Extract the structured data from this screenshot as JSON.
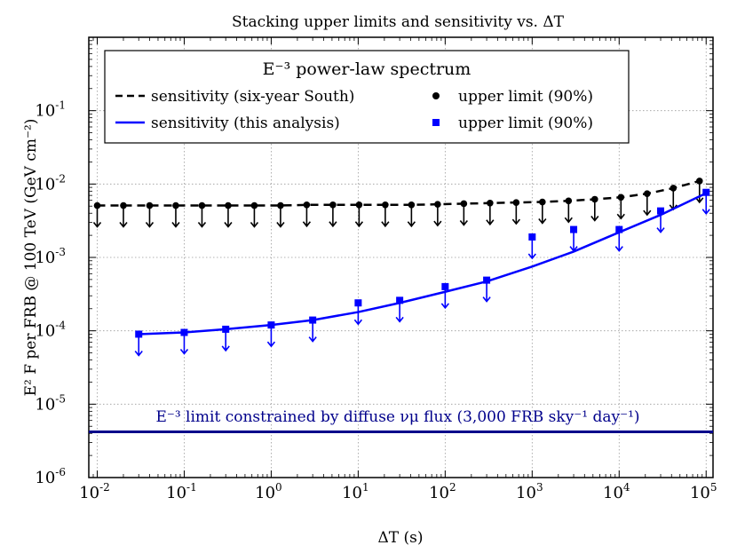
{
  "chart_data": {
    "type": "scatter",
    "title": "Stacking upper limits and sensitivity vs. ΔT",
    "xlabel": "ΔT (s)",
    "ylabel": "E² F per FRB @ 100 TeV (GeV cm⁻²)",
    "xscale": "log",
    "yscale": "log",
    "xlim": [
      0.008,
      120000
    ],
    "ylim": [
      1e-06,
      1.0
    ],
    "grid": true,
    "x_ticks": [
      {
        "value": 0.01,
        "base": "10",
        "exp": "-2"
      },
      {
        "value": 0.1,
        "base": "10",
        "exp": "-1"
      },
      {
        "value": 1,
        "base": "10",
        "exp": "0"
      },
      {
        "value": 10,
        "base": "10",
        "exp": "1"
      },
      {
        "value": 100,
        "base": "10",
        "exp": "2"
      },
      {
        "value": 1000,
        "base": "10",
        "exp": "3"
      },
      {
        "value": 10000,
        "base": "10",
        "exp": "4"
      },
      {
        "value": 100000,
        "base": "10",
        "exp": "5"
      }
    ],
    "y_ticks": [
      {
        "value": 1e-06,
        "base": "10",
        "exp": "-6"
      },
      {
        "value": 1e-05,
        "base": "10",
        "exp": "-5"
      },
      {
        "value": 0.0001,
        "base": "10",
        "exp": "-4"
      },
      {
        "value": 0.001,
        "base": "10",
        "exp": "-3"
      },
      {
        "value": 0.01,
        "base": "10",
        "exp": "-2"
      },
      {
        "value": 0.1,
        "base": "10",
        "exp": "-1"
      }
    ],
    "legend": {
      "placement": "top-left",
      "title": "E⁻³ power-law spectrum",
      "entries": [
        {
          "label": "sensitivity (six-year South)",
          "style": "dashed-line",
          "color": "#000000"
        },
        {
          "label": "sensitivity (this analysis)",
          "style": "solid-line",
          "color": "#0000ff"
        },
        {
          "label": "upper limit (90%)",
          "style": "circle",
          "color": "#000000"
        },
        {
          "label": "upper limit (90%)",
          "style": "square",
          "color": "#0000ff"
        }
      ]
    },
    "series": [
      {
        "name": "sensitivity (six-year South)",
        "kind": "line-dashed",
        "color": "#000000",
        "x": [
          0.01,
          0.02,
          0.04,
          0.08,
          0.16,
          0.32,
          0.64,
          1.28,
          2.56,
          5.12,
          10.24,
          20.48,
          40.96,
          81.92,
          163.84,
          327.68,
          655.36,
          1310.72,
          2621.44,
          5242.88,
          10485.76,
          20971.52,
          41943.04,
          83886.08,
          100000
        ],
        "y": [
          0.0051,
          0.0051,
          0.0051,
          0.0051,
          0.0051,
          0.0051,
          0.0051,
          0.0051,
          0.0052,
          0.0052,
          0.0052,
          0.0052,
          0.0052,
          0.0053,
          0.0054,
          0.0055,
          0.0056,
          0.0057,
          0.0059,
          0.0062,
          0.0066,
          0.0074,
          0.0088,
          0.011,
          0.012
        ]
      },
      {
        "name": "upper limit (90%)",
        "kind": "circle-upper-limit",
        "color": "#000000",
        "x": [
          0.01,
          0.02,
          0.04,
          0.08,
          0.16,
          0.32,
          0.64,
          1.28,
          2.56,
          5.12,
          10.24,
          20.48,
          40.96,
          81.92,
          163.84,
          327.68,
          655.36,
          1310.72,
          2621.44,
          5242.88,
          10485.76,
          20971.52,
          41943.04,
          83886.08
        ],
        "y": [
          0.0051,
          0.0051,
          0.0051,
          0.0051,
          0.0051,
          0.0051,
          0.0051,
          0.0051,
          0.0052,
          0.0052,
          0.0052,
          0.0052,
          0.0052,
          0.0053,
          0.0054,
          0.0055,
          0.0056,
          0.0057,
          0.0059,
          0.0062,
          0.0066,
          0.0074,
          0.0088,
          0.011
        ]
      },
      {
        "name": "sensitivity (this analysis)",
        "kind": "line-solid",
        "color": "#0000ff",
        "x": [
          0.03,
          0.1,
          0.3,
          1,
          3,
          10,
          30,
          100,
          300,
          1000,
          3000,
          10000,
          30000,
          100000
        ],
        "y": [
          9e-05,
          9.5e-05,
          0.000105,
          0.00012,
          0.00014,
          0.00018,
          0.00024,
          0.00034,
          0.00047,
          0.00075,
          0.0012,
          0.0022,
          0.0038,
          0.0075
        ]
      },
      {
        "name": "upper limit (90%)",
        "kind": "square-upper-limit",
        "color": "#0000ff",
        "x": [
          0.03,
          0.1,
          0.3,
          1,
          3,
          10,
          30,
          100,
          300,
          1000,
          3000,
          10000,
          30000,
          100000
        ],
        "y": [
          9e-05,
          9.5e-05,
          0.000105,
          0.00012,
          0.00014,
          0.00024,
          0.00026,
          0.0004,
          0.00049,
          0.0019,
          0.0024,
          0.0024,
          0.0043,
          0.0077
        ]
      },
      {
        "name": "E⁻³ limit constrained by diffuse νμ flux (3,000 FRB sky⁻¹ day⁻¹)",
        "kind": "hline",
        "color": "#00008b",
        "y": 4.2e-06
      }
    ],
    "annotations": [
      {
        "text": "E⁻³ limit constrained by diffuse νμ flux (3,000 FRB sky⁻¹ day⁻¹)",
        "color": "#00008b"
      }
    ]
  }
}
